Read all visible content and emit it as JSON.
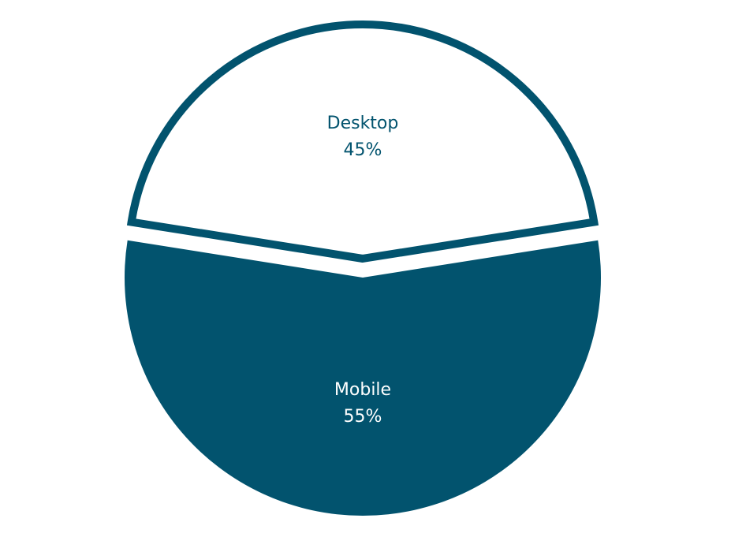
{
  "chart_data": {
    "type": "pie",
    "title": "",
    "categories": [
      "Desktop",
      "Mobile"
    ],
    "values": [
      45,
      55
    ],
    "series": [
      {
        "values": [
          45,
          55
        ]
      }
    ],
    "slices": [
      {
        "label": "Desktop",
        "value": 45,
        "value_label": "45%",
        "color": "#ffffff",
        "outline_color": "#02536e",
        "text_color": "#02536e"
      },
      {
        "label": "Mobile",
        "value": 55,
        "value_label": "55%",
        "color": "#02536e",
        "text_color": "#ffffff"
      }
    ],
    "legend": "none",
    "exploded": true
  }
}
